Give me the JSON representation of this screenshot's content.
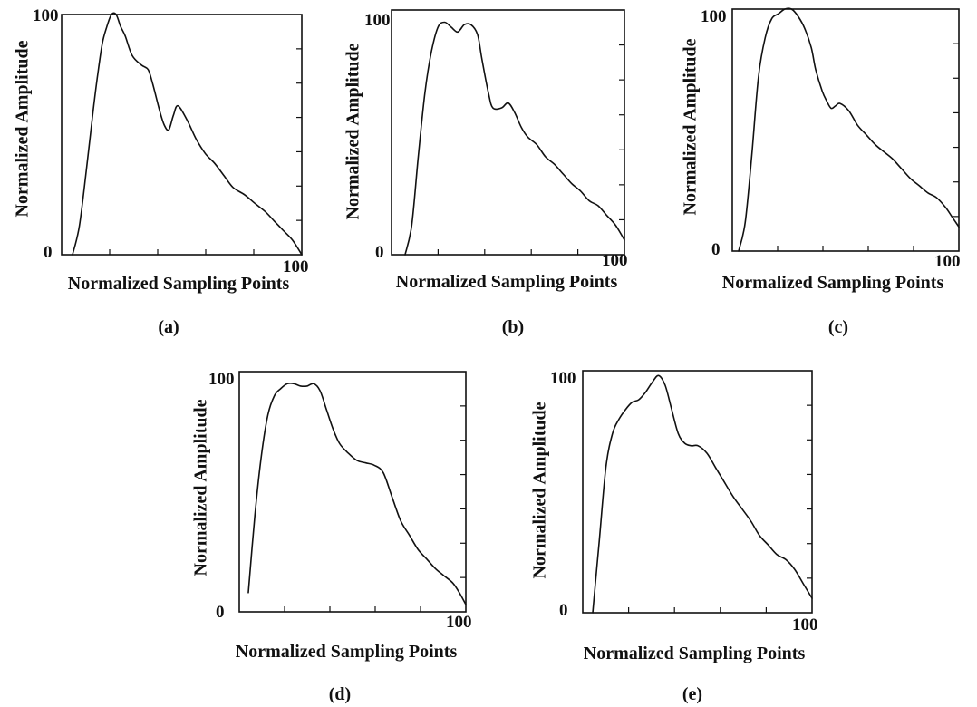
{
  "chart_data": [
    {
      "type": "line",
      "panel_label": "(a)",
      "xlabel": "Normalized Sampling Points",
      "ylabel": "Normalized Amplitude",
      "xlim": [
        0,
        100
      ],
      "ylim": [
        0,
        100
      ],
      "y_tick_labels": [
        "0",
        "100"
      ],
      "x_tick_labels": [
        "100"
      ],
      "series": [
        {
          "x": [
            0,
            3,
            6,
            9,
            11,
            13,
            15,
            17,
            19,
            21,
            23,
            26,
            30,
            33,
            35,
            38,
            40,
            42,
            44,
            46,
            50,
            54,
            58,
            62,
            66,
            70,
            75,
            80,
            84,
            88,
            92,
            96,
            100
          ],
          "y": [
            0,
            12,
            35,
            60,
            75,
            88,
            95,
            100,
            100,
            95,
            91,
            83,
            79,
            77,
            71,
            60,
            54,
            52,
            58,
            62,
            56,
            48,
            42,
            38,
            33,
            28,
            25,
            21,
            18,
            14,
            10,
            6,
            0
          ]
        }
      ]
    },
    {
      "type": "line",
      "panel_label": "(b)",
      "xlabel": "Normalized Sampling Points",
      "ylabel": "Normalized Amplitude",
      "xlim": [
        0,
        100
      ],
      "ylim": [
        0,
        100
      ],
      "y_tick_labels": [
        "0",
        "100"
      ],
      "x_tick_labels": [
        "100"
      ],
      "series": [
        {
          "x": [
            0,
            3,
            6,
            9,
            12,
            15,
            18,
            21,
            24,
            27,
            30,
            33,
            35,
            38,
            40,
            44,
            47,
            50,
            53,
            56,
            60,
            64,
            68,
            72,
            76,
            80,
            84,
            88,
            92,
            96,
            100
          ],
          "y": [
            0,
            12,
            40,
            66,
            83,
            93,
            95,
            93,
            91,
            94,
            94,
            90,
            80,
            66,
            60,
            60,
            62,
            58,
            52,
            48,
            45,
            40,
            37,
            33,
            29,
            26,
            22,
            20,
            16,
            12,
            6
          ]
        }
      ]
    },
    {
      "type": "line",
      "panel_label": "(c)",
      "xlabel": "Normalized Sampling Points",
      "ylabel": "Normalized Amplitude",
      "xlim": [
        0,
        100
      ],
      "ylim": [
        0,
        100
      ],
      "y_tick_labels": [
        "0",
        "100"
      ],
      "x_tick_labels": [
        "100"
      ],
      "series": [
        {
          "x": [
            0,
            3,
            6,
            9,
            12,
            15,
            18,
            21,
            24,
            27,
            30,
            33,
            35,
            38,
            40,
            42,
            44,
            46,
            50,
            54,
            58,
            62,
            66,
            70,
            74,
            78,
            82,
            86,
            90,
            94,
            97,
            100
          ],
          "y": [
            0,
            12,
            40,
            72,
            88,
            96,
            98,
            100,
            100,
            97,
            92,
            84,
            75,
            66,
            62,
            59,
            60,
            61,
            58,
            52,
            48,
            44,
            41,
            38,
            34,
            30,
            27,
            24,
            22,
            18,
            14,
            10
          ]
        }
      ]
    },
    {
      "type": "line",
      "panel_label": "(d)",
      "xlabel": "Normalized Sampling Points",
      "ylabel": "Normalized Amplitude",
      "xlim": [
        0,
        100
      ],
      "ylim": [
        0,
        100
      ],
      "y_tick_labels": [
        "0",
        "100"
      ],
      "x_tick_labels": [
        "100"
      ],
      "series": [
        {
          "x": [
            0,
            3,
            6,
            9,
            12,
            15,
            18,
            21,
            24,
            27,
            30,
            33,
            36,
            39,
            42,
            46,
            50,
            54,
            58,
            62,
            66,
            70,
            74,
            78,
            82,
            86,
            90,
            94,
            97,
            100
          ],
          "y": [
            8,
            40,
            65,
            82,
            90,
            93,
            95,
            95,
            94,
            94,
            95,
            92,
            84,
            76,
            70,
            66,
            63,
            62,
            61,
            58,
            48,
            38,
            32,
            26,
            22,
            18,
            15,
            12,
            8,
            3
          ]
        }
      ]
    },
    {
      "type": "line",
      "panel_label": "(e)",
      "xlabel": "Normalized Sampling Points",
      "ylabel": "Normalized Amplitude",
      "xlim": [
        0,
        100
      ],
      "ylim": [
        0,
        100
      ],
      "y_tick_labels": [
        "0",
        "100"
      ],
      "x_tick_labels": [
        "100"
      ],
      "series": [
        {
          "x": [
            0,
            3,
            6,
            9,
            12,
            15,
            18,
            21,
            24,
            27,
            30,
            33,
            36,
            39,
            42,
            45,
            48,
            52,
            56,
            60,
            64,
            68,
            72,
            76,
            80,
            84,
            88,
            92,
            96,
            100
          ],
          "y": [
            0,
            30,
            60,
            74,
            80,
            84,
            87,
            88,
            91,
            95,
            98,
            94,
            84,
            74,
            70,
            69,
            69,
            66,
            60,
            54,
            48,
            43,
            38,
            32,
            28,
            24,
            22,
            18,
            12,
            6
          ]
        }
      ]
    }
  ]
}
